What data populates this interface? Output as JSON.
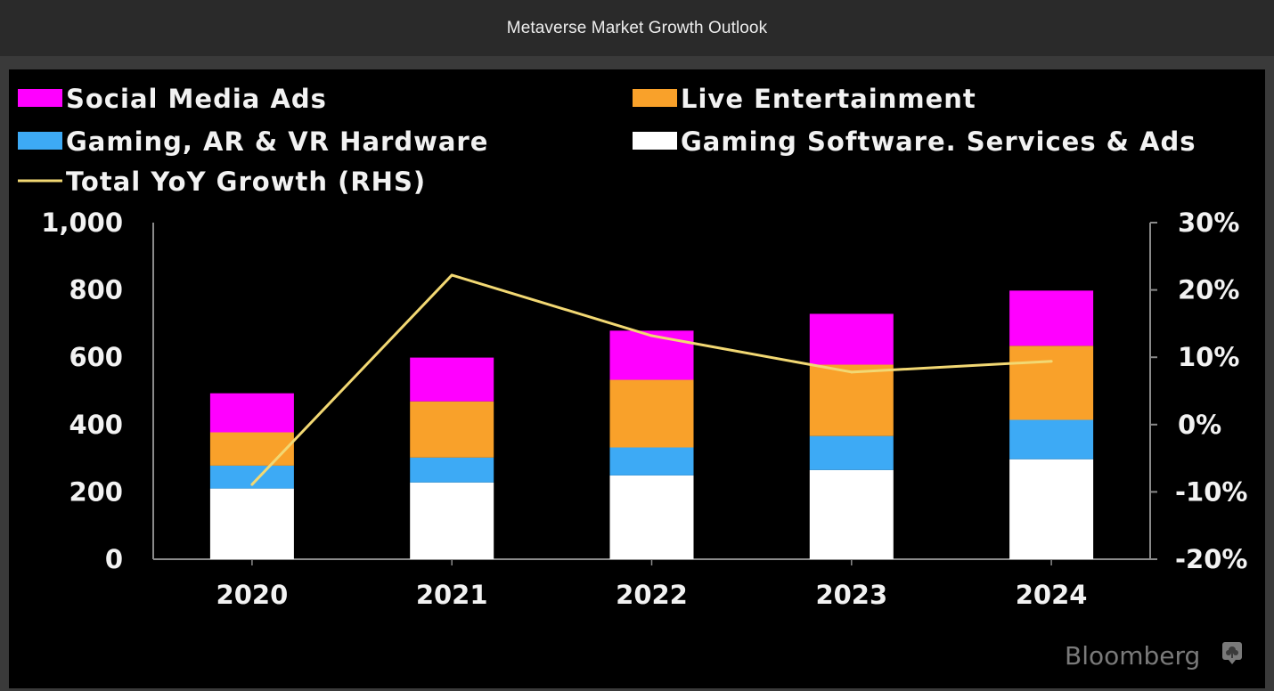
{
  "header": {
    "title": "Metaverse Market Growth Outlook"
  },
  "branding": {
    "source": "Bloomberg",
    "icon": "bloomberg-tree-bubble-icon"
  },
  "colors": {
    "social_media_ads": "#FF00FF",
    "live_entertainment": "#F9A12A",
    "gaming_hardware": "#3DAAF5",
    "gaming_software": "#FFFFFF",
    "yoy_growth": "#F2D873",
    "axis": "#8a8a8a",
    "text": "#F2F2F2"
  },
  "chart_data": {
    "type": "bar",
    "stacked": true,
    "title": "Metaverse Market Growth Outlook",
    "categories": [
      "2020",
      "2021",
      "2022",
      "2023",
      "2024"
    ],
    "series": [
      {
        "name": "Gaming Software. Services & Ads",
        "key": "gaming_software",
        "values": [
          210,
          228,
          249,
          265,
          297
        ]
      },
      {
        "name": "Gaming, AR & VR Hardware",
        "key": "gaming_hardware",
        "values": [
          68,
          74,
          83,
          101,
          117
        ]
      },
      {
        "name": "Live Entertainment",
        "key": "live_entertainment",
        "values": [
          99,
          167,
          201,
          212,
          220
        ]
      },
      {
        "name": "Social Media Ads",
        "key": "social_media_ads",
        "values": [
          116,
          130,
          146,
          151,
          164
        ]
      }
    ],
    "line_series": {
      "name": "Total YoY Growth (RHS)",
      "key": "yoy_growth",
      "axis": "right",
      "unit": "%",
      "values": [
        -8.9,
        22.2,
        13.2,
        7.8,
        9.4
      ]
    },
    "legend": {
      "placement": "top",
      "entries": [
        {
          "label": "Social Media Ads",
          "key": "social_media_ads",
          "kind": "box"
        },
        {
          "label": "Live Entertainment",
          "key": "live_entertainment",
          "kind": "box"
        },
        {
          "label": "Gaming, AR & VR Hardware",
          "key": "gaming_hardware",
          "kind": "box"
        },
        {
          "label": "Gaming Software. Services & Ads",
          "key": "gaming_software",
          "kind": "box"
        },
        {
          "label": "Total YoY Growth (RHS)",
          "key": "yoy_growth",
          "kind": "line"
        }
      ]
    },
    "y_left": {
      "ylim": [
        0,
        1000
      ],
      "ticks": [
        0,
        200,
        400,
        600,
        800,
        1000
      ],
      "tick_labels": [
        "0",
        "200",
        "400",
        "600",
        "800",
        "1,000"
      ]
    },
    "y_right": {
      "ylim": [
        -20,
        30
      ],
      "ticks": [
        -20,
        -10,
        0,
        10,
        20,
        30
      ],
      "tick_labels": [
        "-20%",
        "-10%",
        "0%",
        "10%",
        "20%",
        "30%"
      ]
    },
    "xlabel": "",
    "ylabel": "",
    "grid": false
  }
}
